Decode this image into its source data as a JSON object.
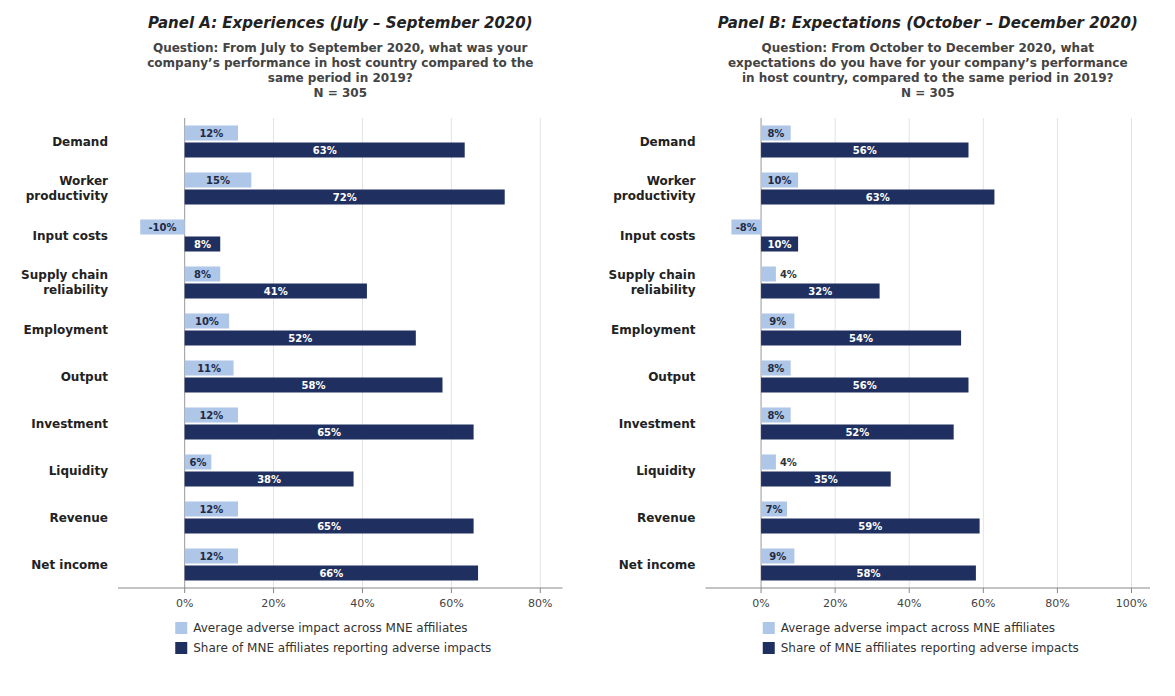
{
  "chart_data": [
    {
      "type": "bar",
      "orientation": "horizontal",
      "title": "Panel A: Experiences (July – September 2020)",
      "subtitle": "Question: From July to September 2020, what was your\ncompany’s performance in host country compared to the\nsame period in 2019?\nN = 305",
      "categories": [
        "Demand",
        "Worker\nproductivity",
        "Input costs",
        "Supply chain\nreliability",
        "Employment",
        "Output",
        "Investment",
        "Liquidity",
        "Revenue",
        "Net income"
      ],
      "series": [
        {
          "name": "Average adverse impact across MNE affiliates",
          "color": "#aec6e8",
          "values": [
            12,
            15,
            -10,
            8,
            10,
            11,
            12,
            6,
            12,
            12
          ],
          "value_labels": [
            "12%",
            "15%",
            "-10%",
            "8%",
            "10%",
            "11%",
            "12%",
            "6%",
            "12%",
            "12%"
          ]
        },
        {
          "name": "Share of MNE affiliates reporting adverse impacts",
          "color": "#1f3060",
          "values": [
            63,
            72,
            8,
            41,
            52,
            58,
            65,
            38,
            65,
            66
          ],
          "value_labels": [
            "63%",
            "72%",
            "8%",
            "41%",
            "52%",
            "58%",
            "65%",
            "38%",
            "65%",
            "66%"
          ]
        }
      ],
      "xlim": [
        -15,
        85
      ],
      "xticks": [
        {
          "value": 0,
          "label": "0%"
        },
        {
          "value": 20,
          "label": "20%"
        },
        {
          "value": 40,
          "label": "40%"
        },
        {
          "value": 60,
          "label": "60%"
        },
        {
          "value": 80,
          "label": "80%"
        }
      ],
      "grid": true,
      "data_labels": true,
      "legend": "bottom"
    },
    {
      "type": "bar",
      "orientation": "horizontal",
      "title": "Panel B: Expectations (October – December 2020)",
      "subtitle": "Question: From October to December 2020, what\nexpectations do you have for your company’s performance\nin host country, compared to the same period in 2019?\nN = 305",
      "categories": [
        "Demand",
        "Worker\nproductivity",
        "Input costs",
        "Supply chain\nreliability",
        "Employment",
        "Output",
        "Investment",
        "Liquidity",
        "Revenue",
        "Net income"
      ],
      "series": [
        {
          "name": "Average adverse impact across MNE affiliates",
          "color": "#aec6e8",
          "values": [
            8,
            10,
            -8,
            4,
            9,
            8,
            8,
            4,
            7,
            9
          ],
          "value_labels": [
            "8%",
            "10%",
            "-8%",
            "4%",
            "9%",
            "8%",
            "8%",
            "4%",
            "7%",
            "9%"
          ]
        },
        {
          "name": "Share of MNE affiliates reporting adverse impacts",
          "color": "#1f3060",
          "values": [
            56,
            63,
            10,
            32,
            54,
            56,
            52,
            35,
            59,
            58
          ],
          "value_labels": [
            "56%",
            "63%",
            "10%",
            "32%",
            "54%",
            "56%",
            "52%",
            "35%",
            "59%",
            "58%"
          ]
        }
      ],
      "xlim": [
        -15,
        105
      ],
      "xticks": [
        {
          "value": 0,
          "label": "0%"
        },
        {
          "value": 20,
          "label": "20%"
        },
        {
          "value": 40,
          "label": "40%"
        },
        {
          "value": 60,
          "label": "60%"
        },
        {
          "value": 80,
          "label": "80%"
        },
        {
          "value": 100,
          "label": "100%"
        }
      ],
      "grid": true,
      "data_labels": true,
      "legend": "bottom"
    }
  ]
}
